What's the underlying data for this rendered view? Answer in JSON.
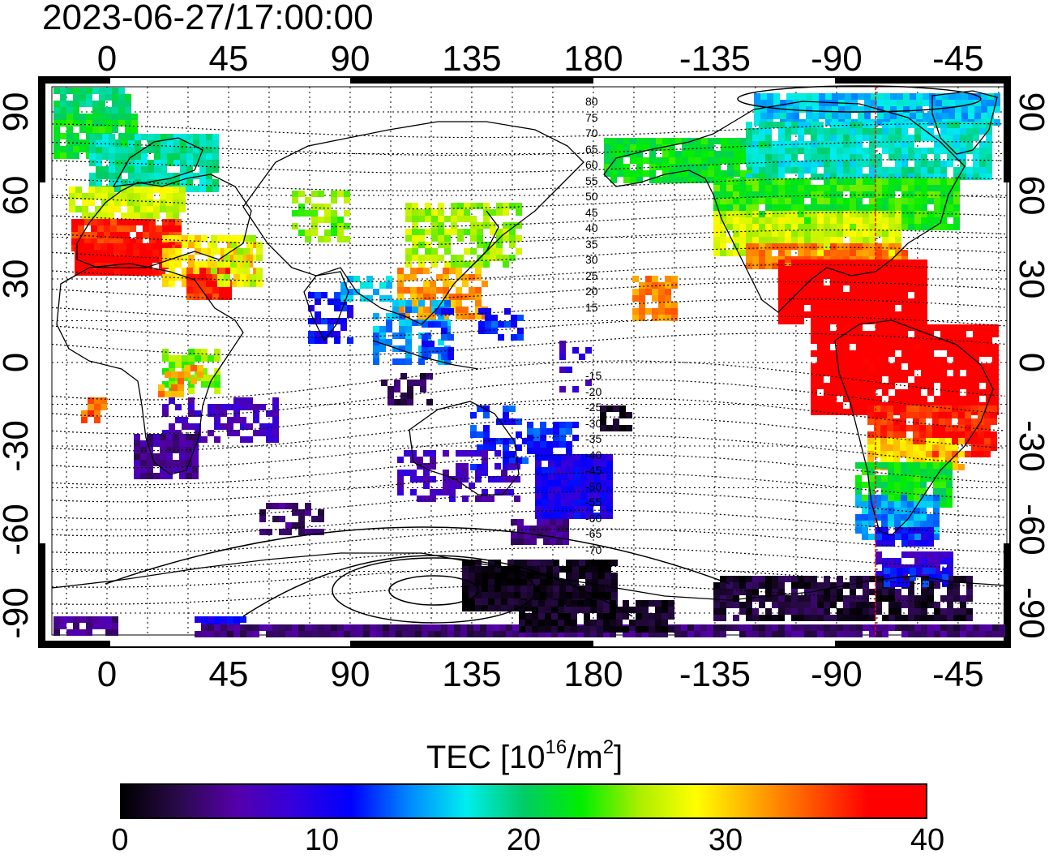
{
  "title": "2023-06-27/17:00:00",
  "map": {
    "projection": "equirectangular, centered 135E",
    "lon_top_labels": [
      "0",
      "45",
      "90",
      "135",
      "180",
      "-135",
      "-90",
      "-45"
    ],
    "lon_bottom_labels": [
      "0",
      "45",
      "90",
      "135",
      "180",
      "-135",
      "-90",
      "-45"
    ],
    "lat_left_labels": [
      "90",
      "60",
      "30",
      "0",
      "-30",
      "-60",
      "-90"
    ],
    "lat_right_labels": [
      "90",
      "60",
      "30",
      "0",
      "-30",
      "-60",
      "-90"
    ],
    "lon_ticks_deg": [
      0,
      45,
      90,
      135,
      180,
      225,
      270,
      315
    ],
    "lat_ticks_deg": [
      90,
      60,
      30,
      0,
      -30,
      -60,
      -90
    ],
    "grid": "dotted every 15 degrees",
    "contour_labels_north": [
      "80",
      "75",
      "70",
      "65",
      "60",
      "55",
      "50",
      "45",
      "40",
      "35",
      "30",
      "25",
      "20",
      "15"
    ],
    "contour_labels_south": [
      "-15",
      "-20",
      "-25",
      "-30",
      "-35",
      "-40",
      "-45",
      "-50",
      "-55",
      "-60",
      "-65",
      "-70",
      "-75"
    ],
    "terminator_color": "#ff0000",
    "terminator_lon_deg": -75
  },
  "colorbar": {
    "title_prefix": "TEC  [10",
    "title_exp": "16",
    "title_mid": "/m",
    "title_exp2": "2",
    "title_suffix": "]",
    "tick_labels": [
      "0",
      "10",
      "20",
      "30",
      "40"
    ],
    "range": [
      0,
      40
    ],
    "colors": [
      "#000000",
      "#2a0a4a",
      "#5500aa",
      "#3300dd",
      "#0000ff",
      "#0088ff",
      "#00eeee",
      "#00cc66",
      "#00ee00",
      "#aaee00",
      "#ffff00",
      "#ffaa00",
      "#ff5500",
      "#ff0000",
      "#ff0000"
    ]
  }
}
